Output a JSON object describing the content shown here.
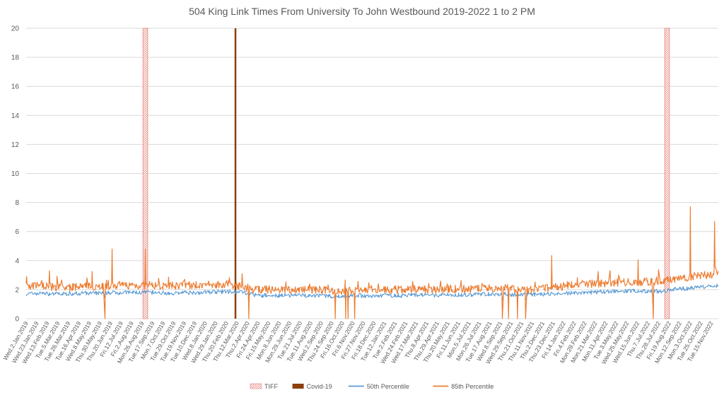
{
  "chart_data": {
    "type": "line",
    "title": "504 King Link Times From University To John Westbound 2019-2022 1 to 2 PM",
    "xlabel": "",
    "ylabel": "",
    "ylim": [
      0,
      20
    ],
    "yticks": [
      0,
      2,
      4,
      6,
      8,
      10,
      12,
      14,
      16,
      18,
      20
    ],
    "grid": true,
    "legend_position": "bottom",
    "x_start": "2019-01-02",
    "x_end": "2022-12-30",
    "categories": [
      "Wed.2.Jan.2019",
      "Wed.23.Jan.2019",
      "Wed.13.Feb.2019",
      "Tue.5.Mar.2019",
      "Tue.26.Mar.2019",
      "Tue.16.Apr.2019",
      "Wed.8.May.2019",
      "Thu.30.May.2019",
      "Thu.20.Jun.2019",
      "Fri.12.Jul.2019",
      "Fri.2.Aug.2019",
      "Mon.26.Aug.2019",
      "Tue.17.Sep.2019",
      "Mon.7.Oct.2019",
      "Tue.29.Oct.2019",
      "Tue.19.Nov.2019",
      "Tue.10.Dec.2019",
      "Wed.8.Jan.2020",
      "Wed.29.Jan.2020",
      "Thu.20.Feb.2020",
      "Thu.12.Mar.2020",
      "Thu.2.Apr.2020",
      "Fri.24.Apr.2020",
      "Fri.15.May.2020",
      "Mon.8.Jun.2020",
      "Mon.29.Jun.2020",
      "Tue.21.Jul.2020",
      "Tue.11.Aug.2020",
      "Wed.2.Sep.2020",
      "Thu.24.Sep.2020",
      "Fri.16.Oct.2020",
      "Fri.6.Nov.2020",
      "Fri.27.Nov.2020",
      "Fri.18.Dec.2020",
      "Tue.12.Jan.2021",
      "Tue.2.Feb.2021",
      "Wed.24.Feb.2021",
      "Wed.17.Mar.2021",
      "Thu.8.Apr.2021",
      "Thu.29.Apr.2021",
      "Thu.20.May.2021",
      "Fri.11.Jun.2021",
      "Mon.5.Jul.2021",
      "Mon.26.Jul.2021",
      "Tue.17.Aug.2021",
      "Wed.8.Sep.2021",
      "Wed.29.Sep.2021",
      "Thu.21.Oct.2021",
      "Thu.11.Nov.2021",
      "Thu.2.Dec.2021",
      "Thu.23.Dec.2021",
      "Fri.14.Jan.2022",
      "Fri.4.Feb.2022",
      "Mon.28.Feb.2022",
      "Mon.21.Mar.2022",
      "Mon.11.Apr.2022",
      "Tue.3.May.2022",
      "Wed.25.May.2022",
      "Wed.15.Jun.2022",
      "Thu.7.Jul.2022",
      "Thu.28.Jul.2022",
      "Fri.19.Aug.2022",
      "Mon.12.Sep.2022",
      "Mon.3.Oct.2022",
      "Tue.25.Oct.2022",
      "Tue.15.Nov.2022"
    ],
    "markers": [
      {
        "name": "TIFF",
        "x": "2019-09-05",
        "x_end": "2019-09-15",
        "color": "#f4b6b0",
        "style": "hatched"
      },
      {
        "name": "Covid-19",
        "x": "2020-03-16",
        "x_end": "2020-03-17",
        "color": "#8b3f0a",
        "style": "solid"
      },
      {
        "name": "TIFF",
        "x": "2022-09-08",
        "x_end": "2022-09-18",
        "color": "#f4b6b0",
        "style": "hatched"
      }
    ],
    "series": [
      {
        "name": "50th Percentile",
        "color": "#5b9bd5",
        "x": [
          "2019-01-02",
          "2019-02-01",
          "2019-03-01",
          "2019-04-01",
          "2019-05-01",
          "2019-06-01",
          "2019-07-01",
          "2019-08-01",
          "2019-09-01",
          "2019-10-01",
          "2019-11-01",
          "2019-12-01",
          "2020-01-01",
          "2020-02-01",
          "2020-03-01",
          "2020-04-01",
          "2020-05-01",
          "2020-06-01",
          "2020-07-01",
          "2020-08-01",
          "2020-09-01",
          "2020-10-01",
          "2020-11-01",
          "2020-12-01",
          "2021-01-01",
          "2021-02-01",
          "2021-03-01",
          "2021-04-01",
          "2021-05-01",
          "2021-06-01",
          "2021-07-01",
          "2021-08-01",
          "2021-09-01",
          "2021-10-01",
          "2021-11-01",
          "2021-12-01",
          "2022-01-01",
          "2022-02-01",
          "2022-03-01",
          "2022-04-01",
          "2022-05-01",
          "2022-06-01",
          "2022-07-01",
          "2022-08-01",
          "2022-09-01",
          "2022-10-01",
          "2022-11-01",
          "2022-12-01",
          "2022-12-30"
        ],
        "values": [
          1.7,
          1.75,
          1.7,
          1.72,
          1.75,
          1.75,
          1.8,
          1.8,
          1.8,
          1.8,
          1.75,
          1.8,
          1.8,
          1.85,
          1.85,
          1.85,
          1.6,
          1.6,
          1.6,
          1.6,
          1.6,
          1.55,
          1.55,
          1.6,
          1.55,
          1.6,
          1.6,
          1.65,
          1.6,
          1.65,
          1.65,
          1.65,
          1.7,
          1.7,
          1.65,
          1.65,
          1.7,
          1.7,
          1.8,
          1.8,
          1.85,
          1.9,
          1.9,
          1.9,
          1.9,
          2.05,
          2.1,
          2.2,
          2.3
        ]
      },
      {
        "name": "85th Percentile",
        "color": "#ed7d31",
        "x": [
          "2019-01-02",
          "2019-02-01",
          "2019-03-01",
          "2019-04-01",
          "2019-05-01",
          "2019-06-01",
          "2019-07-01",
          "2019-08-01",
          "2019-09-01",
          "2019-10-01",
          "2019-11-01",
          "2019-12-01",
          "2020-01-01",
          "2020-02-01",
          "2020-03-01",
          "2020-04-01",
          "2020-05-01",
          "2020-06-01",
          "2020-07-01",
          "2020-08-01",
          "2020-09-01",
          "2020-10-01",
          "2020-11-01",
          "2020-12-01",
          "2021-01-01",
          "2021-02-01",
          "2021-03-01",
          "2021-04-01",
          "2021-05-01",
          "2021-06-01",
          "2021-07-01",
          "2021-08-01",
          "2021-09-01",
          "2021-10-01",
          "2021-11-01",
          "2021-12-01",
          "2022-01-01",
          "2022-02-01",
          "2022-03-01",
          "2022-04-01",
          "2022-05-01",
          "2022-06-01",
          "2022-07-01",
          "2022-08-01",
          "2022-09-01",
          "2022-10-01",
          "2022-11-01",
          "2022-12-01",
          "2022-12-30"
        ],
        "values": [
          2.2,
          2.3,
          2.2,
          2.15,
          2.2,
          2.25,
          2.3,
          2.3,
          2.3,
          2.3,
          2.25,
          2.3,
          2.3,
          2.35,
          2.4,
          2.2,
          2.0,
          2.0,
          2.0,
          2.0,
          2.0,
          1.95,
          1.9,
          1.95,
          1.95,
          2.0,
          2.0,
          2.05,
          2.0,
          2.05,
          2.05,
          2.05,
          2.1,
          2.1,
          2.05,
          2.0,
          2.1,
          2.2,
          2.4,
          2.4,
          2.45,
          2.5,
          2.5,
          2.55,
          2.6,
          2.7,
          2.9,
          3.0,
          3.1
        ]
      }
    ],
    "spikes": [
      {
        "series": "85th Percentile",
        "x": "2019-01-03",
        "value": 2.9
      },
      {
        "series": "85th Percentile",
        "x": "2019-02-20",
        "value": 3.3
      },
      {
        "series": "85th Percentile",
        "x": "2019-05-21",
        "value": 3.25
      },
      {
        "series": "85th Percentile",
        "x": "2019-06-17",
        "value": 0
      },
      {
        "series": "85th Percentile",
        "x": "2019-07-02",
        "value": 4.8
      },
      {
        "series": "85th Percentile",
        "x": "2019-09-10",
        "value": 4.8
      },
      {
        "series": "85th Percentile",
        "x": "2020-04-01",
        "value": 3.1
      },
      {
        "series": "85th Percentile",
        "x": "2020-04-15",
        "value": 0
      },
      {
        "series": "85th Percentile",
        "x": "2020-10-14",
        "value": 0
      },
      {
        "series": "85th Percentile",
        "x": "2020-11-05",
        "value": 0
      },
      {
        "series": "85th Percentile",
        "x": "2020-11-10",
        "value": 0
      },
      {
        "series": "85th Percentile",
        "x": "2020-11-24",
        "value": 0
      },
      {
        "series": "85th Percentile",
        "x": "2021-10-01",
        "value": 0
      },
      {
        "series": "85th Percentile",
        "x": "2021-10-14",
        "value": 0
      },
      {
        "series": "85th Percentile",
        "x": "2021-11-02",
        "value": 0
      },
      {
        "series": "85th Percentile",
        "x": "2021-11-19",
        "value": 0
      },
      {
        "series": "85th Percentile",
        "x": "2022-01-13",
        "value": 4.35
      },
      {
        "series": "85th Percentile",
        "x": "2022-07-14",
        "value": 4.05
      },
      {
        "series": "85th Percentile",
        "x": "2022-08-15",
        "value": 0
      },
      {
        "series": "85th Percentile",
        "x": "2022-11-01",
        "value": 7.7
      },
      {
        "series": "85th Percentile",
        "x": "2022-12-22",
        "value": 6.7
      }
    ]
  }
}
